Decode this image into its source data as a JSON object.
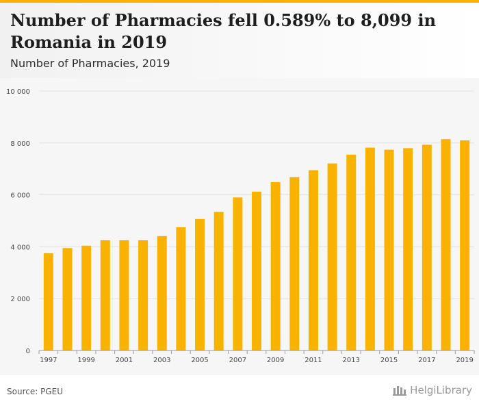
{
  "header": {
    "title": "Number of Pharmacies fell 0.589% to 8,099 in Romania in 2019",
    "subtitle": "Number of Pharmacies, 2019"
  },
  "footer": {
    "source": "Source: PGEU",
    "brand": "HelgiLibrary"
  },
  "colors": {
    "bar": "#f9b200",
    "accent": "#f9b200"
  },
  "chart_data": {
    "type": "bar",
    "categories": [
      "1997",
      "1998",
      "1999",
      "2000",
      "2001",
      "2002",
      "2003",
      "2004",
      "2005",
      "2006",
      "2007",
      "2008",
      "2009",
      "2010",
      "2011",
      "2012",
      "2013",
      "2014",
      "2015",
      "2016",
      "2017",
      "2018",
      "2019"
    ],
    "series": [
      {
        "values": [
          3750,
          3950,
          4040,
          4250,
          4250,
          4250,
          4410,
          4750,
          5070,
          5340,
          5900,
          6120,
          6490,
          6680,
          6950,
          7210,
          7550,
          7820,
          7740,
          7800,
          7930,
          8147,
          8099
        ]
      }
    ],
    "x_tick_labels": [
      "1997",
      "1999",
      "2001",
      "2003",
      "2005",
      "2007",
      "2009",
      "2011",
      "2013",
      "2015",
      "2017",
      "2019"
    ],
    "y_tick_labels": [
      "0",
      "2 000",
      "4 000",
      "6 000",
      "8 000",
      "10 000"
    ],
    "y_ticks": [
      0,
      2000,
      4000,
      6000,
      8000,
      10000
    ],
    "ylim": [
      0,
      10000
    ],
    "xlabel": "",
    "ylabel": "",
    "grid": true,
    "legend": "none"
  }
}
